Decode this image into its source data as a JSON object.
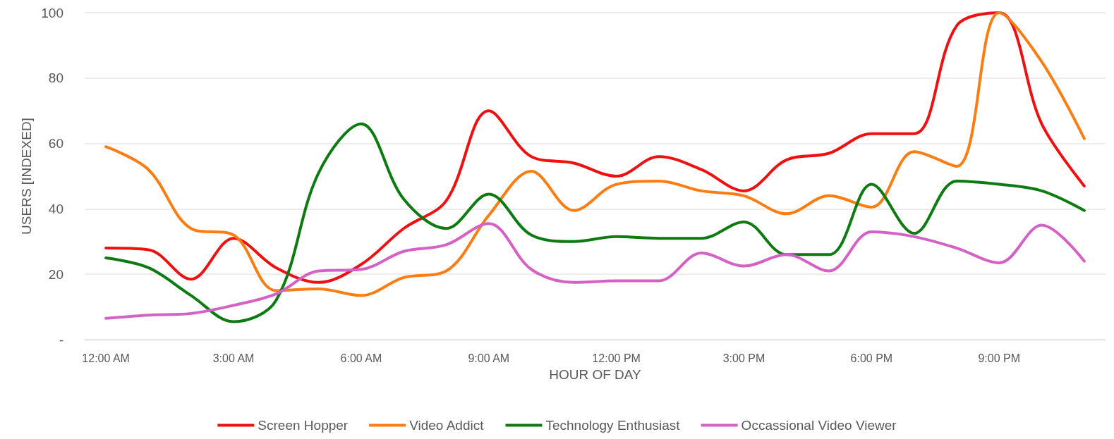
{
  "chart_data": {
    "type": "line",
    "xlabel": "HOUR OF DAY",
    "ylabel": "USERS [INDEXED]",
    "categories": [
      "12:00 AM",
      null,
      null,
      "3:00 AM",
      null,
      null,
      "6:00 AM",
      null,
      null,
      "9:00 AM",
      null,
      null,
      "12:00 PM",
      null,
      null,
      "3:00 PM",
      null,
      null,
      "6:00 PM",
      null,
      null,
      "9:00 PM",
      null,
      null
    ],
    "series": [
      {
        "name": "Screen Hopper",
        "color": "#ee1111",
        "values": [
          28,
          27.5,
          18.5,
          31,
          22,
          17.5,
          23,
          34,
          42.5,
          70,
          56,
          54,
          50,
          56,
          52,
          45.5,
          55,
          57,
          63,
          63,
          96,
          100,
          66,
          47
        ]
      },
      {
        "name": "Video Addict",
        "color": "#fb7d14",
        "values": [
          59,
          52,
          34,
          32,
          15,
          15.5,
          13.5,
          19,
          21,
          38,
          51.5,
          39.5,
          47.5,
          48.5,
          45.5,
          44,
          38.5,
          44,
          40.5,
          57.5,
          53,
          100,
          85,
          61.5
        ]
      },
      {
        "name": "Technology Enthusiast",
        "color": "#0d7a12",
        "values": [
          25,
          22,
          13.5,
          5.5,
          12,
          51,
          66,
          43,
          34,
          44.5,
          32,
          30,
          31.5,
          31,
          31,
          36,
          26,
          26,
          47.5,
          32.5,
          48.5,
          47.5,
          45.5,
          39.5
        ]
      },
      {
        "name": "Occassional Video Viewer",
        "color": "#d462c6",
        "values": [
          6.5,
          7.5,
          8,
          10.5,
          14,
          21,
          21.5,
          27,
          29,
          35.5,
          21.5,
          17.5,
          18,
          18,
          26.5,
          22.5,
          26,
          21,
          33,
          31.5,
          28,
          23.5,
          35,
          24
        ]
      }
    ],
    "ylim": [
      0,
      100
    ],
    "yticks": [
      {
        "value": 0,
        "label": "-"
      },
      20,
      40,
      60,
      80,
      100
    ],
    "grid": "y",
    "legend": "bottom",
    "marker": "none",
    "line_style": "solid"
  }
}
